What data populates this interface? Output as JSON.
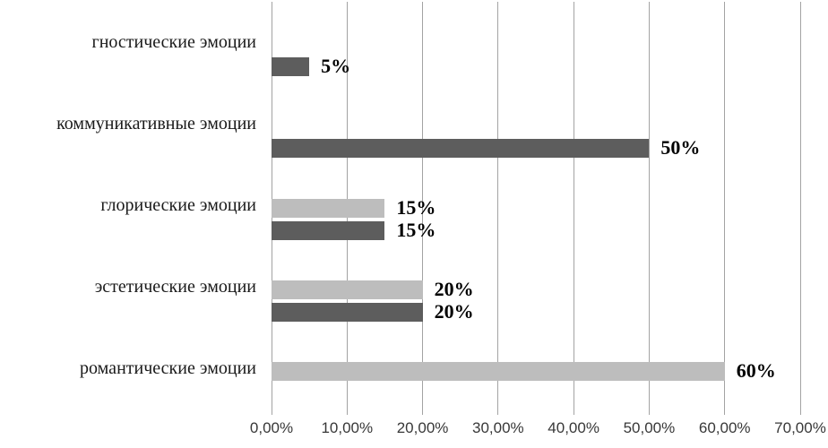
{
  "chart_data": {
    "type": "bar",
    "orientation": "horizontal",
    "title": "",
    "categories": [
      "гностические эмоции",
      "коммуникативные эмоции",
      "глорические эмоции",
      "эстетические эмоции",
      "романтические эмоции"
    ],
    "series": [
      {
        "name": "light-gray-series",
        "color": "#bdbdbd",
        "values": [
          0,
          0,
          15,
          20,
          60
        ]
      },
      {
        "name": "dark-gray-series",
        "color": "#5d5d5d",
        "values": [
          5,
          50,
          15,
          20,
          0
        ]
      }
    ],
    "data_labels": {
      "light-gray-series": [
        "",
        "",
        "15%",
        "20%",
        "60%"
      ],
      "dark-gray-series": [
        "5%",
        "50%",
        "15%",
        "20%",
        ""
      ]
    },
    "x_ticks": [
      "0,00%",
      "10,00%",
      "20,00%",
      "30,00%",
      "40,00%",
      "50,00%",
      "60,00%",
      "70,00%"
    ],
    "xlim": [
      0,
      70
    ],
    "grid": "vertical-only",
    "legend": "none",
    "colors": {
      "gridline": "#a3a3a3",
      "data_label_text": "#000000",
      "axis_tick_text": "#383838",
      "background": "#ffffff"
    }
  }
}
